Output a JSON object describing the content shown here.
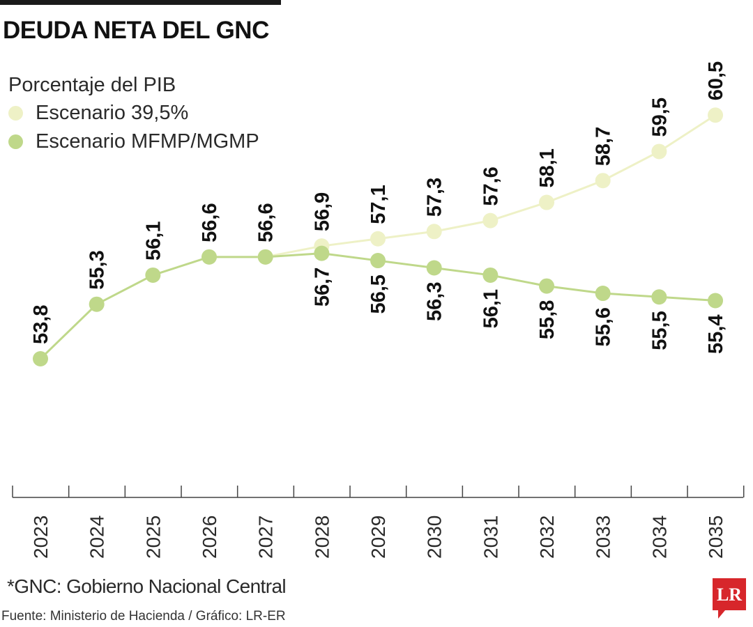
{
  "title": "DEUDA NETA DEL GNC",
  "subtitle": "Porcentaje del PIB",
  "footnote": "*GNC: Gobierno Nacional Central",
  "source": "Fuente: Ministerio de Hacienda / Gráfico: LR-ER",
  "logo": {
    "text": "LR",
    "color": "#d7262b"
  },
  "colors": {
    "scenario_395": "#eef1c6",
    "scenario_mfmp": "#bfd88a",
    "labels": "#111111",
    "axis": "#444444"
  },
  "chart_data": {
    "type": "line",
    "x": [
      "2023",
      "2024",
      "2025",
      "2026",
      "2027",
      "2028",
      "2029",
      "2030",
      "2031",
      "2032",
      "2033",
      "2034",
      "2035"
    ],
    "series": [
      {
        "name": "Escenario 39,5%",
        "color": "#eef1c6",
        "x": [
          "2027",
          "2028",
          "2029",
          "2030",
          "2031",
          "2032",
          "2033",
          "2034",
          "2035"
        ],
        "values": [
          56.6,
          56.9,
          57.1,
          57.3,
          57.6,
          58.1,
          58.7,
          59.5,
          60.5
        ],
        "labels": [
          "",
          "56,9",
          "57,1",
          "57,3",
          "57,6",
          "58,1",
          "58,7",
          "59,5",
          "60,5"
        ]
      },
      {
        "name": "Escenario MFMP/MGMP",
        "color": "#bfd88a",
        "x": [
          "2023",
          "2024",
          "2025",
          "2026",
          "2027",
          "2028",
          "2029",
          "2030",
          "2031",
          "2032",
          "2033",
          "2034",
          "2035"
        ],
        "values": [
          53.8,
          55.3,
          56.1,
          56.6,
          56.6,
          56.7,
          56.5,
          56.3,
          56.1,
          55.8,
          55.6,
          55.5,
          55.4
        ],
        "labels": [
          "53,8",
          "55,3",
          "56,1",
          "56,6",
          "56,6",
          "56,7",
          "56,5",
          "56,3",
          "56,1",
          "55,8",
          "55,6",
          "55,5",
          "55,4"
        ]
      }
    ],
    "grid": false,
    "legend_position": "top-left"
  }
}
